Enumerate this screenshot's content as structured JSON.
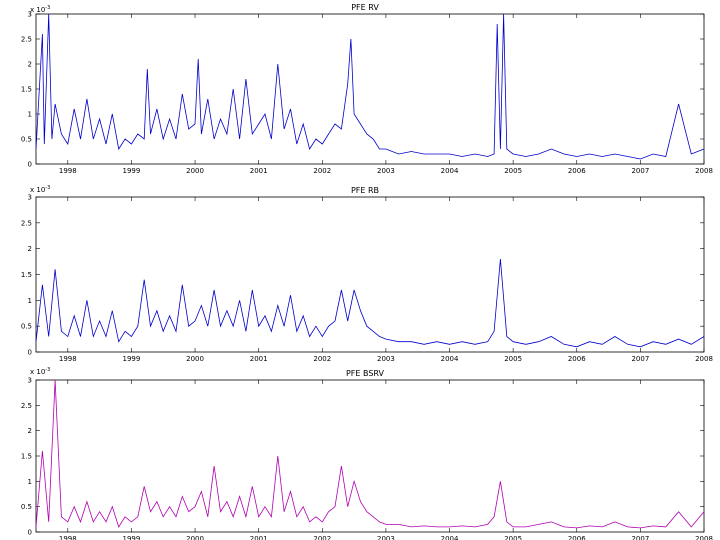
{
  "chart_data": [
    {
      "type": "line",
      "title": "PFE RV",
      "exponent_label": "x 10",
      "exponent_power": "-3",
      "ylim": [
        0,
        3
      ],
      "yticks": [
        0,
        0.5,
        1,
        1.5,
        2,
        2.5,
        3
      ],
      "ytick_labels": [
        "0",
        "0.5",
        "1",
        "1.5",
        "2",
        "2.5",
        "3"
      ],
      "xlim": [
        1997.5,
        2008.0
      ],
      "xticks": [
        1998,
        1999,
        2000,
        2001,
        2002,
        2003,
        2004,
        2005,
        2006,
        2007,
        2008
      ],
      "xtick_labels": [
        "1998",
        "1999",
        "2000",
        "2001",
        "2002",
        "2003",
        "2004",
        "2005",
        "2006",
        "2007",
        "2008"
      ],
      "color": "#0000cc",
      "series": [
        {
          "x": [
            1997.5,
            1997.6,
            1997.63,
            1997.7,
            1997.75,
            1997.8,
            1997.9,
            1998.0,
            1998.1,
            1998.2,
            1998.3,
            1998.4,
            1998.5,
            1998.6,
            1998.7,
            1998.8,
            1998.9,
            1999.0,
            1999.1,
            1999.2,
            1999.25,
            1999.3,
            1999.4,
            1999.5,
            1999.6,
            1999.7,
            1999.8,
            1999.9,
            2000.0,
            2000.05,
            2000.1,
            2000.2,
            2000.3,
            2000.4,
            2000.5,
            2000.6,
            2000.7,
            2000.8,
            2000.9,
            2001.0,
            2001.1,
            2001.2,
            2001.3,
            2001.4,
            2001.5,
            2001.6,
            2001.7,
            2001.8,
            2001.9,
            2002.0,
            2002.1,
            2002.2,
            2002.3,
            2002.4,
            2002.45,
            2002.5,
            2002.6,
            2002.7,
            2002.8,
            2002.9,
            2003.0,
            2003.2,
            2003.4,
            2003.6,
            2003.8,
            2004.0,
            2004.2,
            2004.4,
            2004.6,
            2004.7,
            2004.75,
            2004.8,
            2004.85,
            2004.9,
            2005.0,
            2005.2,
            2005.4,
            2005.6,
            2005.8,
            2006.0,
            2006.2,
            2006.4,
            2006.6,
            2006.8,
            2007.0,
            2007.2,
            2007.4,
            2007.6,
            2007.8,
            2008.0
          ],
          "y": [
            0.3,
            2.6,
            0.4,
            3.0,
            0.5,
            1.2,
            0.6,
            0.4,
            1.1,
            0.5,
            1.3,
            0.5,
            0.9,
            0.4,
            1.0,
            0.3,
            0.5,
            0.4,
            0.6,
            0.5,
            1.9,
            0.6,
            1.1,
            0.5,
            0.9,
            0.5,
            1.4,
            0.7,
            0.8,
            2.1,
            0.6,
            1.3,
            0.5,
            0.9,
            0.6,
            1.5,
            0.5,
            1.7,
            0.6,
            0.8,
            1.0,
            0.5,
            2.0,
            0.7,
            1.1,
            0.4,
            0.8,
            0.3,
            0.5,
            0.4,
            0.6,
            0.8,
            0.7,
            1.6,
            2.5,
            1.0,
            0.8,
            0.6,
            0.5,
            0.3,
            0.3,
            0.2,
            0.25,
            0.2,
            0.2,
            0.2,
            0.15,
            0.2,
            0.15,
            0.2,
            2.8,
            0.3,
            3.0,
            0.3,
            0.2,
            0.15,
            0.2,
            0.3,
            0.2,
            0.15,
            0.2,
            0.15,
            0.2,
            0.15,
            0.1,
            0.2,
            0.15,
            1.2,
            0.2,
            0.3
          ]
        }
      ]
    },
    {
      "type": "line",
      "title": "PFE RB",
      "exponent_label": "x 10",
      "exponent_power": "-3",
      "ylim": [
        0,
        3
      ],
      "yticks": [
        0,
        0.5,
        1,
        1.5,
        2,
        2.5,
        3
      ],
      "ytick_labels": [
        "0",
        "0.5",
        "1",
        "1.5",
        "2",
        "2.5",
        "3"
      ],
      "xlim": [
        1997.5,
        2008.0
      ],
      "xticks": [
        1998,
        1999,
        2000,
        2001,
        2002,
        2003,
        2004,
        2005,
        2006,
        2007,
        2008
      ],
      "xtick_labels": [
        "1998",
        "1999",
        "2000",
        "2001",
        "2002",
        "2003",
        "2004",
        "2005",
        "2006",
        "2007",
        "2008"
      ],
      "color": "#0000cc",
      "series": [
        {
          "x": [
            1997.5,
            1997.6,
            1997.7,
            1997.8,
            1997.9,
            1998.0,
            1998.1,
            1998.2,
            1998.3,
            1998.4,
            1998.5,
            1998.6,
            1998.7,
            1998.8,
            1998.9,
            1999.0,
            1999.1,
            1999.2,
            1999.3,
            1999.4,
            1999.5,
            1999.6,
            1999.7,
            1999.8,
            1999.9,
            2000.0,
            2000.1,
            2000.2,
            2000.3,
            2000.4,
            2000.5,
            2000.6,
            2000.7,
            2000.8,
            2000.9,
            2001.0,
            2001.1,
            2001.2,
            2001.3,
            2001.4,
            2001.5,
            2001.6,
            2001.7,
            2001.8,
            2001.9,
            2002.0,
            2002.1,
            2002.2,
            2002.3,
            2002.4,
            2002.5,
            2002.6,
            2002.7,
            2002.8,
            2002.9,
            2003.0,
            2003.2,
            2003.4,
            2003.6,
            2003.8,
            2004.0,
            2004.2,
            2004.4,
            2004.6,
            2004.7,
            2004.8,
            2004.9,
            2005.0,
            2005.2,
            2005.4,
            2005.6,
            2005.8,
            2006.0,
            2006.2,
            2006.4,
            2006.6,
            2006.8,
            2007.0,
            2007.2,
            2007.4,
            2007.6,
            2007.8,
            2008.0
          ],
          "y": [
            0.2,
            1.3,
            0.3,
            1.6,
            0.4,
            0.3,
            0.7,
            0.3,
            1.0,
            0.3,
            0.6,
            0.3,
            0.8,
            0.2,
            0.4,
            0.3,
            0.5,
            1.4,
            0.5,
            0.8,
            0.4,
            0.7,
            0.4,
            1.3,
            0.5,
            0.6,
            0.9,
            0.5,
            1.2,
            0.5,
            0.8,
            0.5,
            1.0,
            0.4,
            1.2,
            0.5,
            0.7,
            0.4,
            0.9,
            0.5,
            1.1,
            0.4,
            0.7,
            0.3,
            0.5,
            0.3,
            0.5,
            0.6,
            1.2,
            0.6,
            1.2,
            0.8,
            0.5,
            0.4,
            0.3,
            0.25,
            0.2,
            0.2,
            0.15,
            0.2,
            0.15,
            0.2,
            0.15,
            0.2,
            0.4,
            1.8,
            0.3,
            0.2,
            0.15,
            0.2,
            0.3,
            0.15,
            0.1,
            0.2,
            0.15,
            0.3,
            0.15,
            0.1,
            0.2,
            0.15,
            0.25,
            0.15,
            0.3
          ]
        }
      ]
    },
    {
      "type": "line",
      "title": "PFE BSRV",
      "exponent_label": "x 10",
      "exponent_power": "-3",
      "ylim": [
        0,
        3
      ],
      "yticks": [
        0,
        0.5,
        1,
        1.5,
        2,
        2.5,
        3
      ],
      "ytick_labels": [
        "0",
        "0.5",
        "1",
        "1.5",
        "2",
        "2.5",
        "3"
      ],
      "xlim": [
        1997.5,
        2008.0
      ],
      "xticks": [
        1998,
        1999,
        2000,
        2001,
        2002,
        2003,
        2004,
        2005,
        2006,
        2007,
        2008
      ],
      "xtick_labels": [
        "1998",
        "1999",
        "2000",
        "2001",
        "2002",
        "2003",
        "2004",
        "2005",
        "2006",
        "2007",
        "2008"
      ],
      "color": "#b000b0",
      "series": [
        {
          "x": [
            1997.5,
            1997.6,
            1997.7,
            1997.8,
            1997.9,
            1998.0,
            1998.1,
            1998.2,
            1998.3,
            1998.4,
            1998.5,
            1998.6,
            1998.7,
            1998.8,
            1998.9,
            1999.0,
            1999.1,
            1999.2,
            1999.3,
            1999.4,
            1999.5,
            1999.6,
            1999.7,
            1999.8,
            1999.9,
            2000.0,
            2000.1,
            2000.2,
            2000.3,
            2000.4,
            2000.5,
            2000.6,
            2000.7,
            2000.8,
            2000.9,
            2001.0,
            2001.1,
            2001.2,
            2001.3,
            2001.4,
            2001.5,
            2001.6,
            2001.7,
            2001.8,
            2001.9,
            2002.0,
            2002.1,
            2002.2,
            2002.3,
            2002.4,
            2002.5,
            2002.6,
            2002.7,
            2002.8,
            2002.9,
            2003.0,
            2003.2,
            2003.4,
            2003.6,
            2003.8,
            2004.0,
            2004.2,
            2004.4,
            2004.6,
            2004.7,
            2004.8,
            2004.9,
            2005.0,
            2005.2,
            2005.4,
            2005.6,
            2005.8,
            2006.0,
            2006.2,
            2006.4,
            2006.6,
            2006.8,
            2007.0,
            2007.2,
            2007.4,
            2007.6,
            2007.8,
            2008.0
          ],
          "y": [
            0.1,
            1.6,
            0.2,
            3.0,
            0.3,
            0.2,
            0.5,
            0.2,
            0.6,
            0.2,
            0.4,
            0.2,
            0.5,
            0.1,
            0.3,
            0.2,
            0.3,
            0.9,
            0.4,
            0.6,
            0.3,
            0.5,
            0.3,
            0.7,
            0.4,
            0.5,
            0.8,
            0.3,
            1.3,
            0.4,
            0.6,
            0.3,
            0.7,
            0.3,
            0.9,
            0.3,
            0.5,
            0.3,
            1.5,
            0.4,
            0.8,
            0.3,
            0.5,
            0.2,
            0.3,
            0.2,
            0.4,
            0.5,
            1.3,
            0.5,
            1.0,
            0.6,
            0.4,
            0.3,
            0.2,
            0.15,
            0.15,
            0.1,
            0.12,
            0.1,
            0.1,
            0.12,
            0.1,
            0.15,
            0.3,
            1.0,
            0.2,
            0.1,
            0.1,
            0.15,
            0.2,
            0.1,
            0.08,
            0.12,
            0.1,
            0.2,
            0.1,
            0.08,
            0.12,
            0.1,
            0.4,
            0.1,
            0.4
          ]
        }
      ]
    }
  ]
}
